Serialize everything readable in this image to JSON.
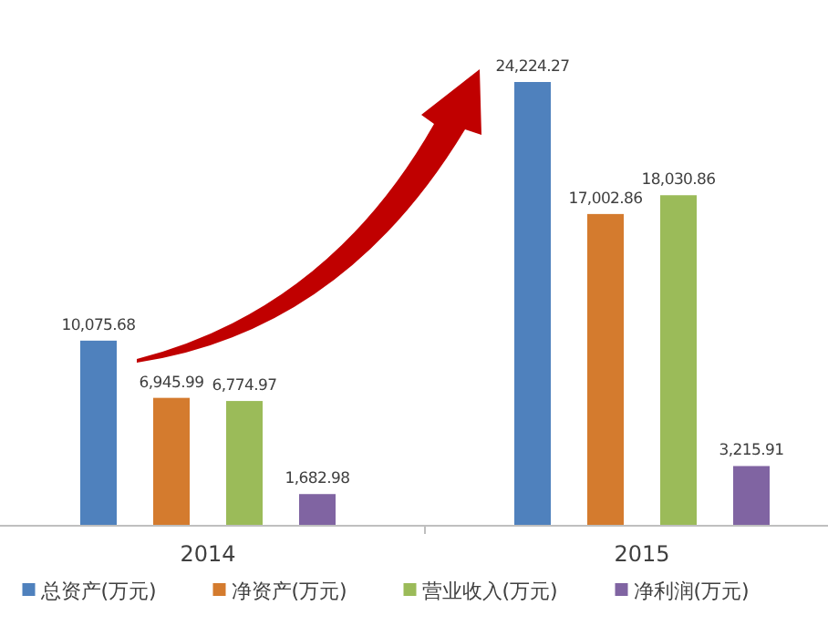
{
  "chart_data": {
    "type": "bar",
    "categories": [
      "2014",
      "2015"
    ],
    "series": [
      {
        "name": "总资产(万元)",
        "color": "#4f81bd",
        "values": [
          10075.68,
          24224.27
        ],
        "value_labels": [
          "10,075.68",
          "24,224.27"
        ]
      },
      {
        "name": "净资产(万元)",
        "color": "#d47b2e",
        "values": [
          6945.99,
          17002.86
        ],
        "value_labels": [
          "6,945.99",
          "17,002.86"
        ]
      },
      {
        "name": "营业收入(万元)",
        "color": "#9bbb59",
        "values": [
          6774.97,
          18030.86
        ],
        "value_labels": [
          "6,774.97",
          "18,030.86"
        ]
      },
      {
        "name": "净利润(万元)",
        "color": "#8064a2",
        "values": [
          1682.98,
          3215.91
        ],
        "value_labels": [
          "1,682.98",
          "3,215.91"
        ]
      }
    ],
    "legend": "bottom"
  }
}
